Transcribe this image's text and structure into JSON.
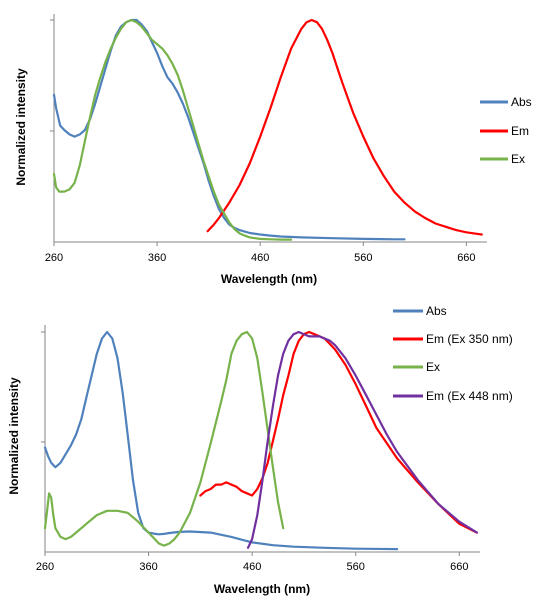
{
  "chart_data": [
    {
      "type": "line",
      "xlabel": "Wavelength (nm)",
      "ylabel": "Normalized intensity",
      "xlim": [
        260,
        680
      ],
      "ylim": [
        0,
        1
      ],
      "x_ticks": [
        "260",
        "360",
        "460",
        "560",
        "660"
      ],
      "grid": false,
      "legend_position": "right",
      "series": [
        {
          "name": "Abs",
          "color": "#4f81bd",
          "x": [
            260,
            262,
            266,
            270,
            275,
            280,
            285,
            290,
            295,
            300,
            305,
            310,
            315,
            320,
            325,
            330,
            335,
            340,
            345,
            350,
            355,
            360,
            365,
            370,
            375,
            380,
            385,
            390,
            395,
            400,
            405,
            410,
            415,
            420,
            425,
            430,
            435,
            440,
            445,
            450,
            460,
            470,
            480,
            500,
            530,
            560,
            590,
            600
          ],
          "y": [
            0.66,
            0.6,
            0.52,
            0.5,
            0.48,
            0.47,
            0.48,
            0.5,
            0.55,
            0.62,
            0.7,
            0.78,
            0.86,
            0.93,
            0.97,
            0.99,
            1.0,
            1.0,
            0.98,
            0.95,
            0.9,
            0.85,
            0.79,
            0.74,
            0.71,
            0.67,
            0.62,
            0.56,
            0.49,
            0.42,
            0.35,
            0.27,
            0.2,
            0.14,
            0.1,
            0.07,
            0.055,
            0.045,
            0.038,
            0.032,
            0.025,
            0.02,
            0.016,
            0.012,
            0.008,
            0.005,
            0.003,
            0.003
          ]
        },
        {
          "name": "Em",
          "color": "#ff0000",
          "x": [
            409,
            415,
            420,
            430,
            440,
            450,
            460,
            470,
            480,
            490,
            500,
            505,
            510,
            515,
            520,
            525,
            530,
            535,
            540,
            550,
            560,
            570,
            580,
            590,
            600,
            610,
            620,
            630,
            640,
            650,
            660,
            670,
            675
          ],
          "y": [
            0.04,
            0.07,
            0.1,
            0.17,
            0.25,
            0.35,
            0.47,
            0.6,
            0.74,
            0.87,
            0.96,
            0.99,
            1.0,
            0.99,
            0.96,
            0.91,
            0.85,
            0.78,
            0.71,
            0.58,
            0.47,
            0.37,
            0.29,
            0.22,
            0.17,
            0.13,
            0.1,
            0.075,
            0.06,
            0.045,
            0.035,
            0.028,
            0.025
          ]
        },
        {
          "name": "Ex",
          "color": "#77b34a",
          "x": [
            260,
            262,
            265,
            270,
            275,
            280,
            285,
            290,
            295,
            300,
            305,
            310,
            315,
            320,
            325,
            330,
            335,
            340,
            345,
            350,
            355,
            360,
            365,
            370,
            375,
            380,
            385,
            390,
            395,
            400,
            405,
            410,
            415,
            420,
            425,
            430,
            435,
            440,
            445,
            450,
            455,
            460,
            470,
            480,
            490
          ],
          "y": [
            0.3,
            0.24,
            0.22,
            0.22,
            0.23,
            0.26,
            0.34,
            0.45,
            0.56,
            0.66,
            0.74,
            0.81,
            0.87,
            0.92,
            0.96,
            0.99,
            1.0,
            0.99,
            0.97,
            0.94,
            0.91,
            0.89,
            0.87,
            0.84,
            0.8,
            0.75,
            0.68,
            0.6,
            0.52,
            0.44,
            0.36,
            0.29,
            0.22,
            0.16,
            0.12,
            0.08,
            0.05,
            0.03,
            0.02,
            0.012,
            0.008,
            0.005,
            0.003,
            0.002,
            0.002
          ]
        }
      ]
    },
    {
      "type": "line",
      "xlabel": "Wavelength (nm)",
      "ylabel": "Normalized intensity",
      "xlim": [
        260,
        680
      ],
      "ylim": [
        0,
        1
      ],
      "x_ticks": [
        "260",
        "360",
        "460",
        "560",
        "660"
      ],
      "grid": false,
      "legend_position": "top-right",
      "series": [
        {
          "name": "Abs",
          "color": "#4f81bd",
          "x": [
            260,
            263,
            266,
            270,
            275,
            280,
            285,
            290,
            295,
            300,
            305,
            310,
            315,
            320,
            325,
            330,
            335,
            340,
            345,
            350,
            355,
            360,
            365,
            370,
            375,
            380,
            390,
            400,
            420,
            440,
            460,
            480,
            500,
            530,
            560,
            600
          ],
          "y": [
            0.47,
            0.43,
            0.4,
            0.38,
            0.4,
            0.44,
            0.48,
            0.53,
            0.6,
            0.7,
            0.8,
            0.9,
            0.97,
            1.0,
            0.97,
            0.88,
            0.72,
            0.52,
            0.32,
            0.17,
            0.1,
            0.08,
            0.075,
            0.072,
            0.074,
            0.078,
            0.083,
            0.085,
            0.08,
            0.06,
            0.035,
            0.022,
            0.015,
            0.01,
            0.006,
            0.004
          ]
        },
        {
          "name": "Em (Ex 350 nm)",
          "color": "#ff0000",
          "x": [
            410,
            415,
            420,
            425,
            430,
            435,
            440,
            445,
            450,
            455,
            460,
            465,
            470,
            475,
            480,
            485,
            490,
            495,
            500,
            505,
            510,
            515,
            520,
            530,
            540,
            550,
            560,
            570,
            580,
            600,
            620,
            640,
            660,
            677
          ],
          "y": [
            0.25,
            0.27,
            0.28,
            0.3,
            0.3,
            0.31,
            0.3,
            0.29,
            0.27,
            0.26,
            0.25,
            0.28,
            0.33,
            0.4,
            0.5,
            0.6,
            0.71,
            0.8,
            0.9,
            0.96,
            0.99,
            1.0,
            0.99,
            0.97,
            0.92,
            0.85,
            0.76,
            0.66,
            0.56,
            0.42,
            0.31,
            0.21,
            0.12,
            0.08
          ]
        },
        {
          "name": "Ex",
          "color": "#77b34a",
          "x": [
            260,
            262,
            264,
            266,
            268,
            270,
            275,
            280,
            285,
            290,
            300,
            310,
            320,
            330,
            340,
            350,
            360,
            370,
            375,
            380,
            385,
            390,
            400,
            410,
            420,
            430,
            435,
            440,
            445,
            450,
            455,
            460,
            465,
            470,
            475,
            480,
            485,
            490
          ],
          "y": [
            0.1,
            0.18,
            0.26,
            0.24,
            0.16,
            0.1,
            0.06,
            0.05,
            0.06,
            0.08,
            0.12,
            0.16,
            0.18,
            0.18,
            0.17,
            0.13,
            0.08,
            0.03,
            0.02,
            0.03,
            0.05,
            0.08,
            0.17,
            0.31,
            0.49,
            0.68,
            0.78,
            0.9,
            0.96,
            0.99,
            1.0,
            0.97,
            0.88,
            0.72,
            0.55,
            0.38,
            0.22,
            0.1
          ]
        },
        {
          "name": "Em (Ex 448 nm)",
          "color": "#7030a0",
          "x": [
            456,
            460,
            465,
            470,
            475,
            480,
            485,
            490,
            495,
            500,
            505,
            510,
            515,
            520,
            525,
            530,
            535,
            540,
            550,
            560,
            570,
            580,
            590,
            600,
            620,
            640,
            660,
            677
          ],
          "y": [
            0.01,
            0.05,
            0.16,
            0.32,
            0.5,
            0.66,
            0.8,
            0.9,
            0.96,
            0.99,
            1.0,
            0.99,
            0.98,
            0.98,
            0.98,
            0.97,
            0.96,
            0.94,
            0.88,
            0.8,
            0.71,
            0.62,
            0.53,
            0.45,
            0.32,
            0.21,
            0.13,
            0.08
          ]
        }
      ]
    }
  ]
}
